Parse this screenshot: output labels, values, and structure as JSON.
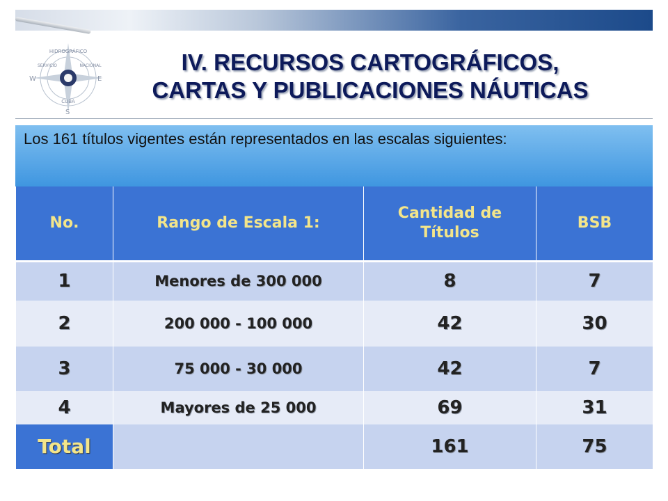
{
  "title_line1": "IV. RECURSOS CARTOGRÁFICOS,",
  "title_line2": "CARTAS Y PUBLICACIONES NÁUTICAS",
  "intro": "Los 161 títulos vigentes están representados en las escalas siguientes:",
  "logo": {
    "text_top": "HIDROGRÁFICO",
    "text_left": "SERVICIO",
    "text_right": "NACIONAL",
    "text_bottom": "CUBA",
    "dir_w": "W",
    "dir_e": "E",
    "dir_s": "S"
  },
  "table": {
    "headers": {
      "no": "No.",
      "range": "Rango de Escala  1:",
      "count": "Cantidad  de Títulos",
      "bsb": "BSB"
    },
    "rows": [
      {
        "no": "1",
        "range": "Menores  de 300 000",
        "count": "8",
        "bsb": "7"
      },
      {
        "no": "2",
        "range": "200 000 - 100 000",
        "count": "42",
        "bsb": "30"
      },
      {
        "no": "3",
        "range": "75 000 - 30 000",
        "count": "42",
        "bsb": "7"
      },
      {
        "no": "4",
        "range": "Mayores de 25 000",
        "count": "69",
        "bsb": "31"
      }
    ],
    "total": {
      "label": "Total",
      "range": "",
      "count": "161",
      "bsb": "75"
    }
  },
  "colors": {
    "header_bg": "#3b73d4",
    "header_text": "#f3e58a",
    "row_dark": "#c6d3ef",
    "row_light": "#e6ebf7",
    "title": "#0d1a5a",
    "intro_bg": "#3f96e0"
  }
}
